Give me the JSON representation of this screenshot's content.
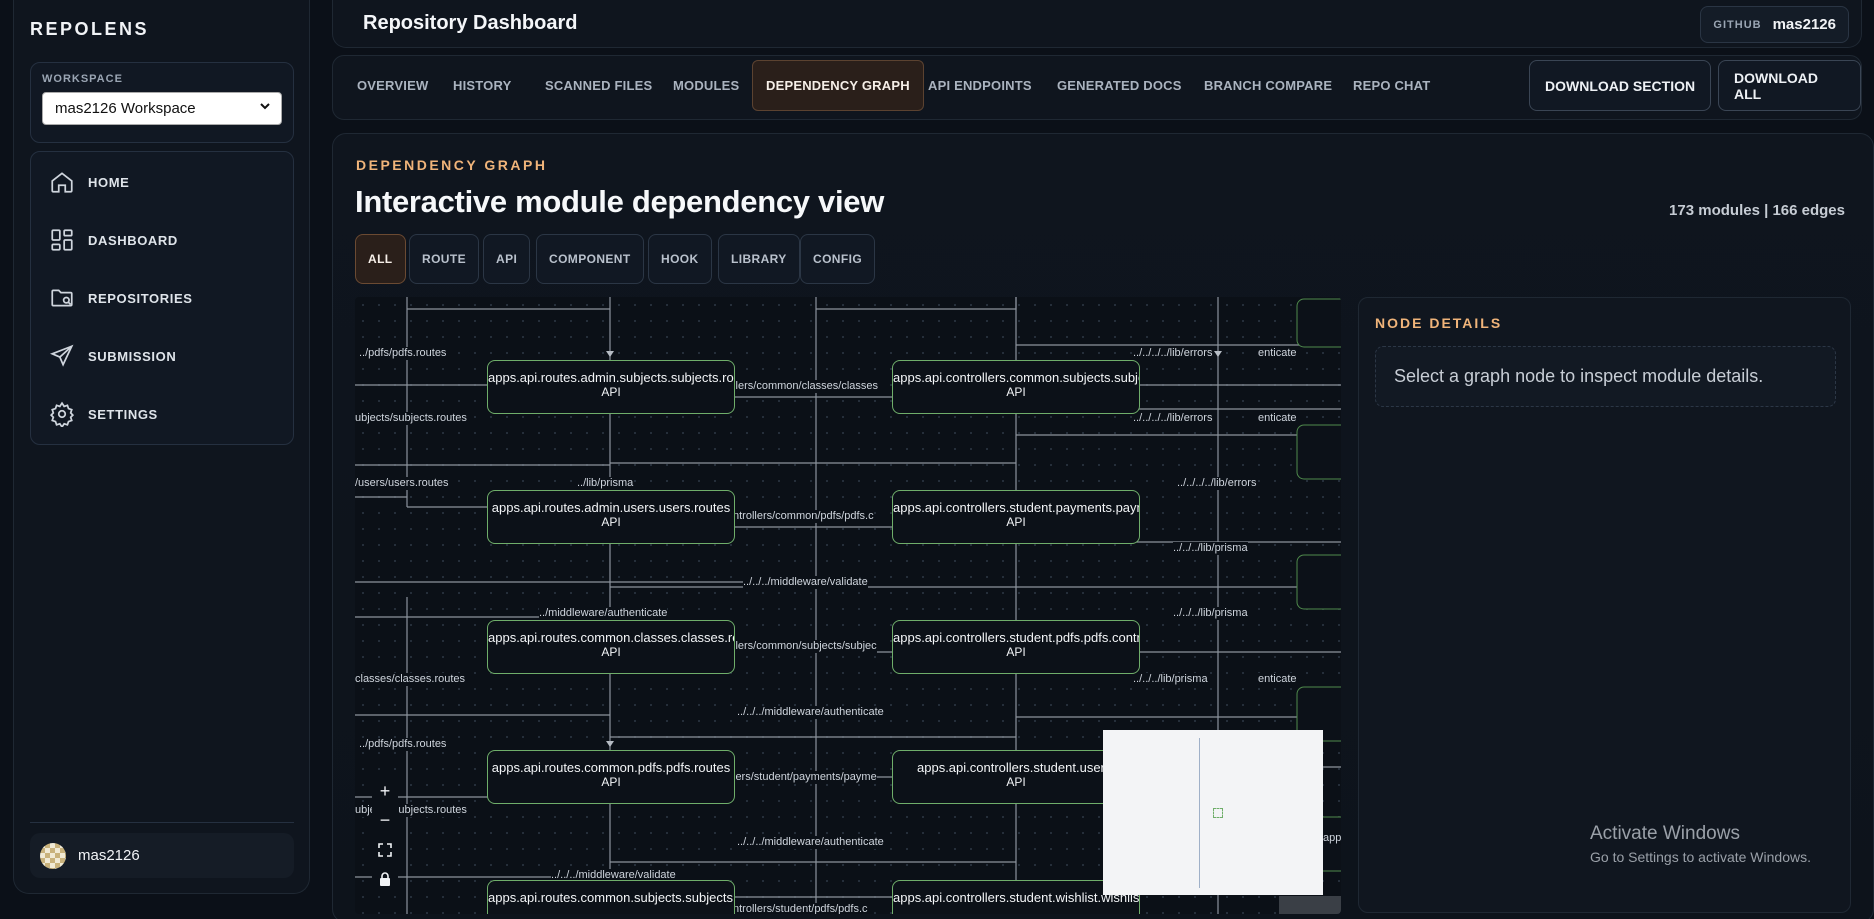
{
  "sidebar": {
    "brand": "REPOLENS",
    "workspace_label": "WORKSPACE",
    "workspace_value": "mas2126 Workspace",
    "items": [
      {
        "label": "HOME",
        "icon": "home-icon"
      },
      {
        "label": "DASHBOARD",
        "icon": "grid-icon"
      },
      {
        "label": "REPOSITORIES",
        "icon": "folder-icon"
      },
      {
        "label": "SUBMISSION",
        "icon": "send-icon"
      },
      {
        "label": "SETTINGS",
        "icon": "gear-icon"
      }
    ],
    "user": "mas2126"
  },
  "header": {
    "title": "Repository Dashboard",
    "github_label": "GITHUB",
    "github_user": "mas2126"
  },
  "tabs": [
    "OVERVIEW",
    "HISTORY",
    "SCANNED FILES",
    "MODULES",
    "DEPENDENCY GRAPH",
    "API ENDPOINTS",
    "GENERATED DOCS",
    "BRANCH COMPARE",
    "REPO CHAT"
  ],
  "active_tab": "DEPENDENCY GRAPH",
  "actions": {
    "download_section": "DOWNLOAD SECTION",
    "download_all": "DOWNLOAD ALL"
  },
  "main": {
    "eyebrow": "DEPENDENCY GRAPH",
    "title": "Interactive module dependency view",
    "stats": "173 modules | 166 edges",
    "filters": [
      "ALL",
      "ROUTE",
      "API",
      "COMPONENT",
      "HOOK",
      "LIBRARY",
      "CONFIG"
    ],
    "active_filter": "ALL"
  },
  "graph": {
    "nodes": [
      {
        "name": "apps.api.routes.admin.subjects.subjects.routes",
        "kind": "API"
      },
      {
        "name": "apps.api.controllers.common.subjects.subjects.controller",
        "kind": "API"
      },
      {
        "name": "apps.api.routes.admin.users.users.routes",
        "kind": "API"
      },
      {
        "name": "apps.api.controllers.student.payments.payments.controller",
        "kind": "API"
      },
      {
        "name": "apps.api.routes.common.classes.classes.routes",
        "kind": "API"
      },
      {
        "name": "apps.api.controllers.student.pdfs.pdfs.controller",
        "kind": "API"
      },
      {
        "name": "apps.api.routes.common.pdfs.pdfs.routes",
        "kind": "API"
      },
      {
        "name": "apps.api.controllers.student.users.",
        "kind": "API"
      },
      {
        "name": "apps.api.routes.common.subjects.subjects.routes",
        "kind": ""
      },
      {
        "name": "apps.api.controllers.student.wishlist.wishlist.controller",
        "kind": ""
      }
    ],
    "edge_labels": [
      "../pdfs/pdfs.routes",
      "ollers/common/classes/classes",
      "../../../../lib/errors",
      "ubjects/subjects.routes",
      "/users/users.routes",
      "../lib/prisma",
      "ntrollers/common/pdfs/pdfs.c",
      "../../../lib/prisma",
      "../../../middleware/validate",
      "../middleware/authenticate",
      "llers/common/subjects/subjec",
      "classes/classes.routes",
      "../../../middleware/authenticate",
      "lers/student/payments/payme",
      "../../../middleware/validate",
      "ntrollers/student/pdfs/pdfs.c",
      "enticate",
      "app"
    ],
    "controls": {
      "zoom_in": "+",
      "zoom_out": "−"
    }
  },
  "details": {
    "title": "NODE DETAILS",
    "empty": "Select a graph node to inspect module details."
  },
  "watermark": {
    "line1": "Activate Windows",
    "line2": "Go to Settings to activate Windows."
  },
  "colors": {
    "accent": "#f0b47a",
    "node_border": "#6fae6a",
    "bg": "#0b1018"
  }
}
